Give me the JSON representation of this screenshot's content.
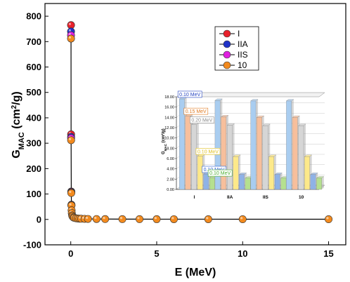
{
  "chart_data": [
    {
      "type": "scatter",
      "ylabel_main": "G",
      "ylabel_sub": "MAC",
      "ylabel_unit_pre": " (cm",
      "ylabel_unit_sup": "2",
      "ylabel_unit_post": "/g)",
      "xlabel": "E (MeV)",
      "xlim": [
        -1.5,
        16
      ],
      "ylim": [
        -100,
        850
      ],
      "xticks": [
        0,
        5,
        10,
        15
      ],
      "yticks": [
        -100,
        0,
        100,
        200,
        300,
        400,
        500,
        600,
        700,
        800
      ],
      "legend_position": "top-right",
      "series": [
        {
          "name": "I",
          "color": "#e8212b",
          "x": [
            0.015,
            0.02,
            0.03,
            0.04
          ],
          "y": [
            765,
            335,
            110,
            58
          ]
        },
        {
          "name": "IIA",
          "color": "#2033c8",
          "x": [
            0.015,
            0.02,
            0.03,
            0.04
          ],
          "y": [
            740,
            325,
            108,
            56
          ]
        },
        {
          "name": "IIS",
          "color": "#e020e0",
          "x": [
            0.015,
            0.02,
            0.03,
            0.04
          ],
          "y": [
            725,
            320,
            106,
            55
          ]
        },
        {
          "name": "10",
          "color": "#f28a1e",
          "x": [
            0.015,
            0.02,
            0.03,
            0.04,
            0.05,
            0.06,
            0.08,
            0.1,
            0.15,
            0.2,
            0.3,
            0.4,
            0.5,
            0.6,
            0.8,
            1,
            1.5,
            2,
            3,
            4,
            5,
            6,
            8,
            10,
            15
          ],
          "y": [
            712,
            312,
            104,
            55,
            36,
            25,
            16,
            12,
            8,
            6.5,
            4.5,
            3.5,
            3,
            2.7,
            2.3,
            2,
            1.6,
            1.4,
            1.2,
            1.1,
            1.0,
            0.95,
            0.9,
            0.85,
            0.8
          ]
        }
      ]
    },
    {
      "type": "bar",
      "ylabel_main": "G",
      "ylabel_sub": "MAC",
      "ylabel_unit": " (cm²/g)",
      "ylim": [
        0,
        18
      ],
      "yticks": [
        "0.00",
        "2.00",
        "4.00",
        "6.00",
        "8.00",
        "10.00",
        "12.00",
        "14.00",
        "16.00",
        "18.00"
      ],
      "categories": [
        "I",
        "IIA",
        "IIS",
        "10"
      ],
      "series": [
        {
          "name": "0.10 MeV",
          "color": "#a9cdf0",
          "values": [
            17.6,
            17.3,
            17.2,
            17.2
          ]
        },
        {
          "name": "0.15 MeV",
          "color": "#f7bf9c",
          "values": [
            14.3,
            14.1,
            14.0,
            14.0
          ]
        },
        {
          "name": "0.20 MeV",
          "color": "#d6d6d6",
          "values": [
            12.6,
            12.5,
            12.4,
            12.4
          ]
        },
        {
          "name": "0.10 MeV",
          "color": "#fde98a",
          "values": [
            6.5,
            6.4,
            6.4,
            6.4
          ]
        },
        {
          "name": "0.10 MeV",
          "color": "#8fb2e6",
          "values": [
            3.0,
            2.9,
            2.9,
            2.9
          ]
        },
        {
          "name": "0.10 MeV",
          "color": "#b5e08f",
          "values": [
            2.3,
            2.2,
            2.2,
            2.2
          ]
        }
      ],
      "label_colors": [
        "#1f3fbf",
        "#e07a20",
        "#8a8a8a",
        "#e0c020",
        "#2b5fd0",
        "#4caf30"
      ]
    }
  ]
}
